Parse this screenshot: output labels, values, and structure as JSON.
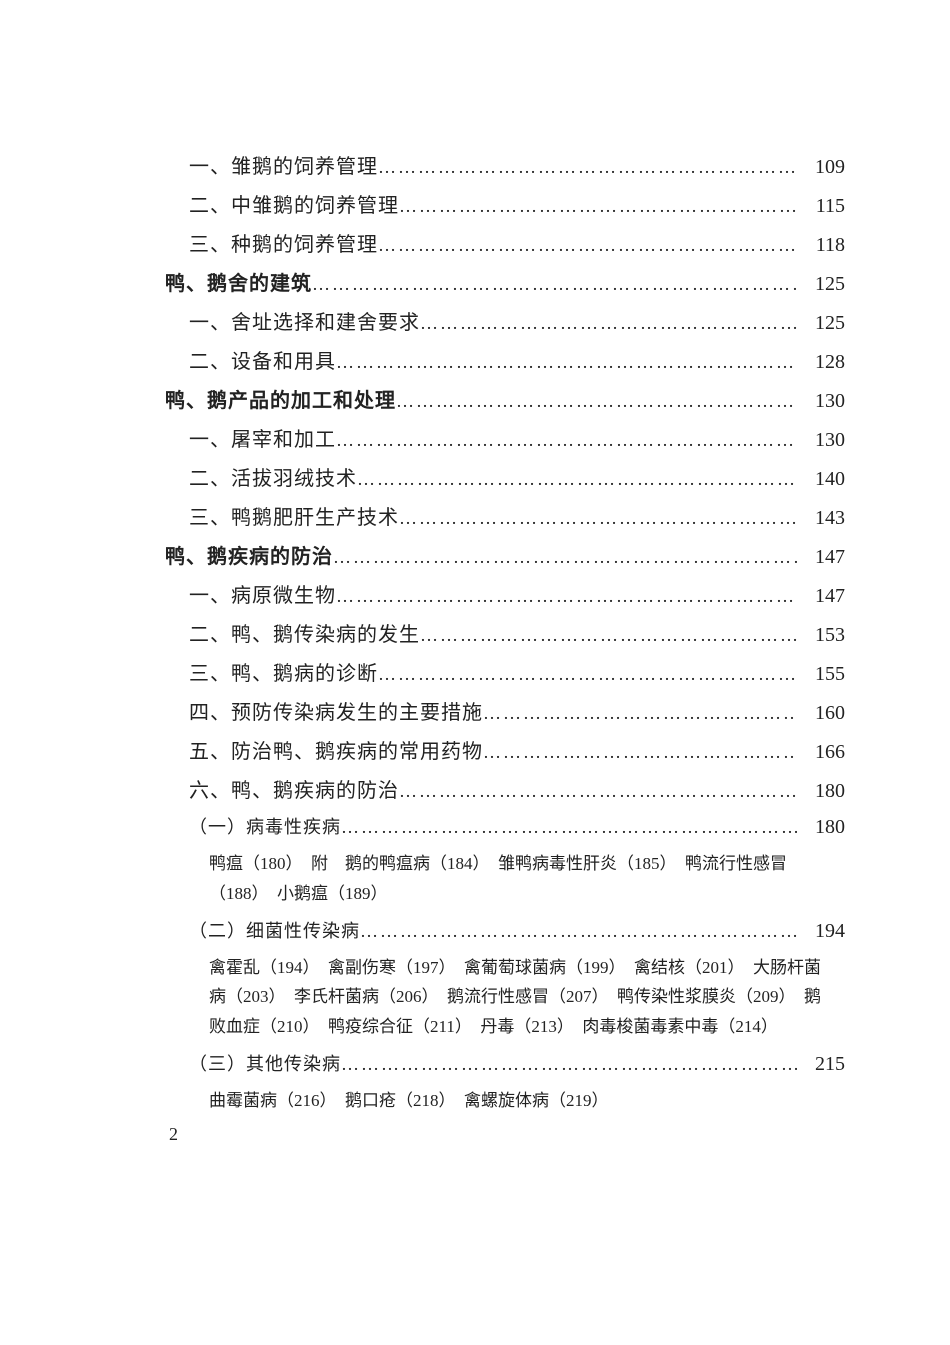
{
  "leader": "……………………………………………………………………………………………………………………",
  "toc": [
    {
      "label": "一、雏鹅的饲养管理",
      "page": "109",
      "indent": 1
    },
    {
      "label": "二、中雏鹅的饲养管理",
      "page": "115",
      "indent": 1
    },
    {
      "label": "三、种鹅的饲养管理",
      "page": "118",
      "indent": 1
    },
    {
      "label": "鸭、鹅舍的建筑",
      "page": "125",
      "indent": 0,
      "bold": true
    },
    {
      "label": "一、舍址选择和建舍要求",
      "page": "125",
      "indent": 1
    },
    {
      "label": "二、设备和用具",
      "page": "128",
      "indent": 1
    },
    {
      "label": "鸭、鹅产品的加工和处理",
      "page": "130",
      "indent": 0,
      "bold": true
    },
    {
      "label": "一、屠宰和加工",
      "page": "130",
      "indent": 1
    },
    {
      "label": "二、活拔羽绒技术",
      "page": "140",
      "indent": 1
    },
    {
      "label": "三、鸭鹅肥肝生产技术",
      "page": "143",
      "indent": 1
    },
    {
      "label": "鸭、鹅疾病的防治",
      "page": "147",
      "indent": 0,
      "bold": true
    },
    {
      "label": "一、病原微生物",
      "page": "147",
      "indent": 1
    },
    {
      "label": "二、鸭、鹅传染病的发生",
      "page": "153",
      "indent": 1
    },
    {
      "label": "三、鸭、鹅病的诊断",
      "page": "155",
      "indent": 1
    },
    {
      "label": "四、预防传染病发生的主要措施",
      "page": "160",
      "indent": 1
    },
    {
      "label": "五、防治鸭、鹅疾病的常用药物",
      "page": "166",
      "indent": 1
    },
    {
      "label": "六、鸭、鹅疾病的防治",
      "page": "180",
      "indent": 1
    },
    {
      "label": "（一）病毒性疾病",
      "page": "180",
      "indent": 2
    }
  ],
  "para1": "鸭瘟（180）　附　鹅的鸭瘟病（184）　雏鸭病毒性肝炎（185）　鸭流行性感冒（188）　小鹅瘟（189）",
  "sub2": {
    "label": "（二）细菌性传染病",
    "page": "194",
    "indent": 2
  },
  "para2": "禽霍乱（194）　禽副伤寒（197）　禽葡萄球菌病（199）　禽结核（201）　大肠杆菌病（203）　李氏杆菌病（206）　鹅流行性感冒（207）　鸭传染性浆膜炎（209）　鹅败血症（210）　鸭疫综合征（211）　丹毒（213）　肉毒梭菌毒素中毒（214）",
  "sub3": {
    "label": "（三）其他传染病",
    "page": "215",
    "indent": 2
  },
  "para3": "曲霉菌病（216）　鹅口疮（218）　禽螺旋体病（219）",
  "pageNumber": "2"
}
